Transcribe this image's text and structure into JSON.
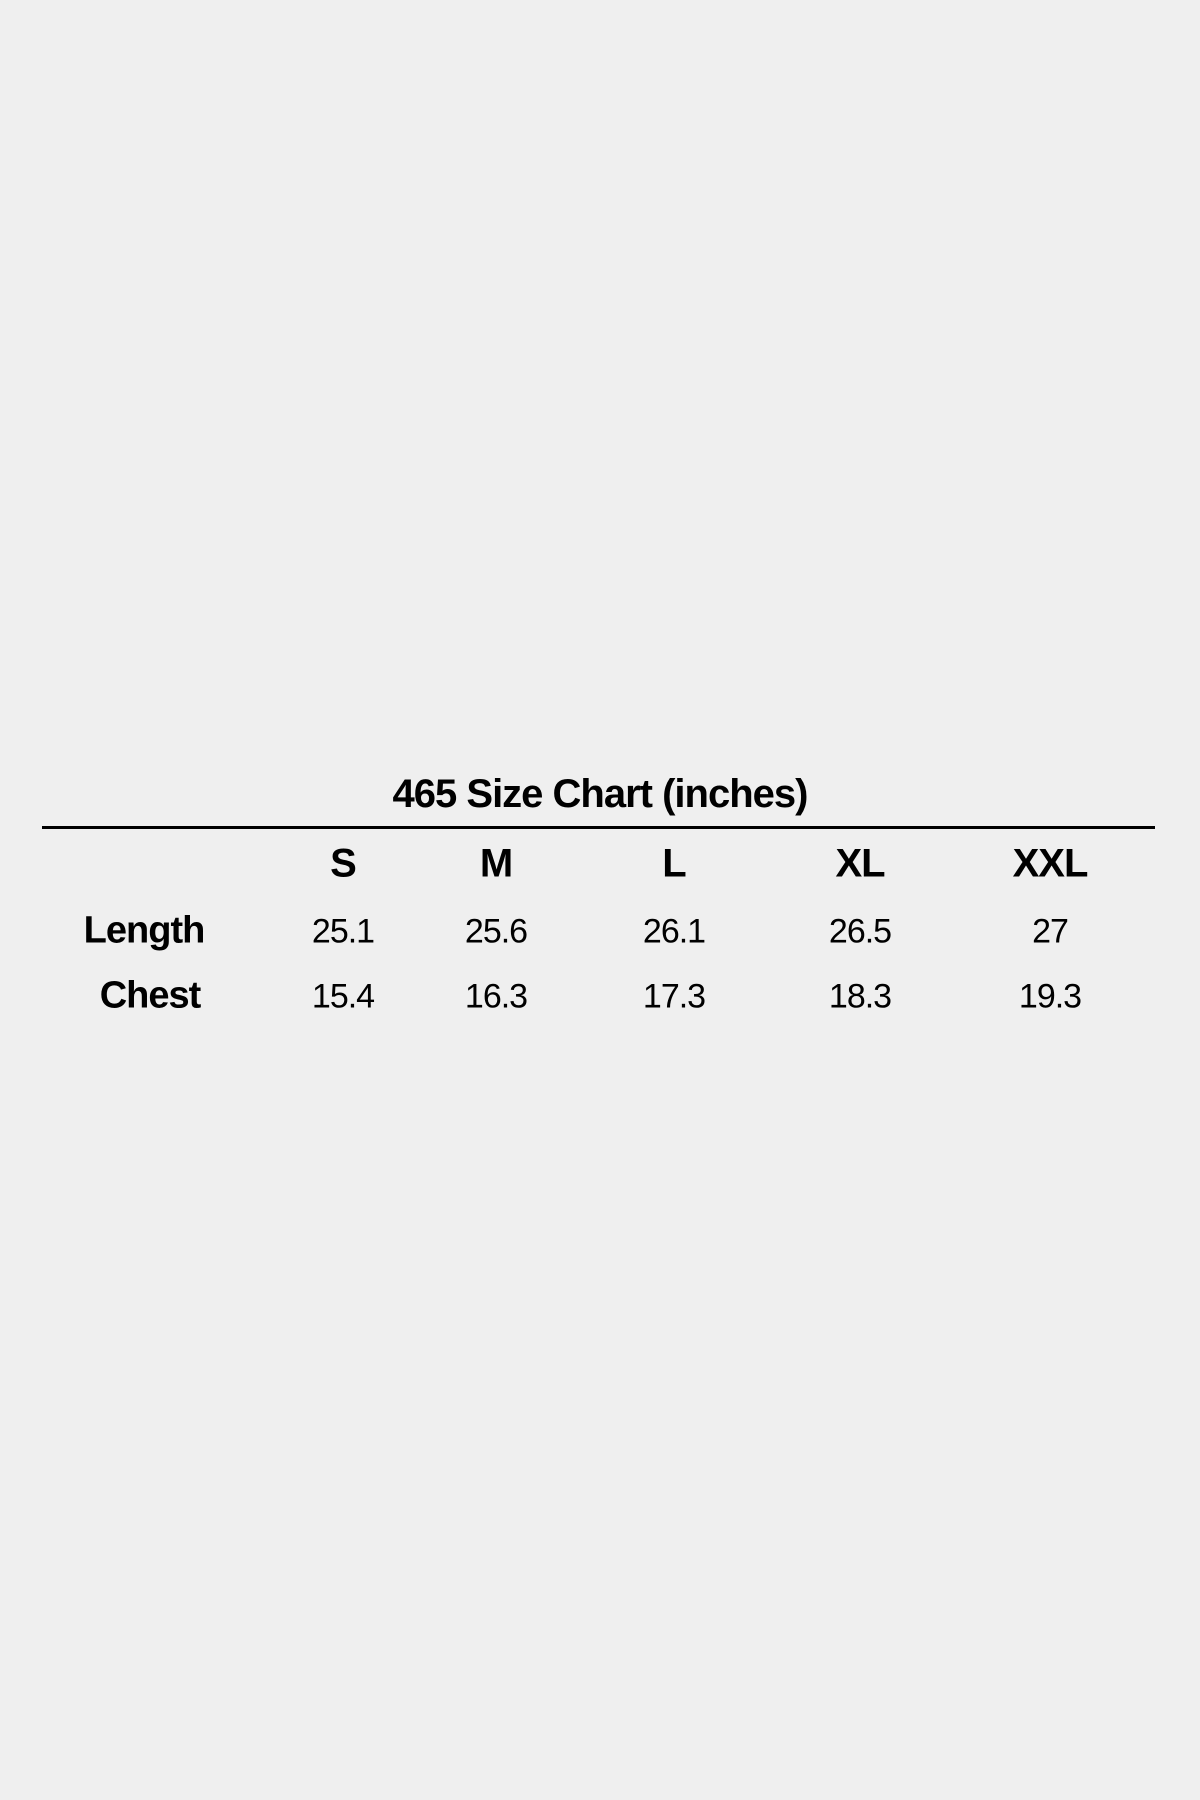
{
  "title": "465 Size Chart (inches)",
  "table": {
    "columns": [
      "S",
      "M",
      "L",
      "XL",
      "XXL"
    ],
    "rows": [
      {
        "label": "Length",
        "values": [
          "25.1",
          "25.6",
          "26.1",
          "26.5",
          "27"
        ]
      },
      {
        "label": "Chest",
        "values": [
          "15.4",
          "16.3",
          "17.3",
          "18.3",
          "19.3"
        ]
      }
    ]
  }
}
